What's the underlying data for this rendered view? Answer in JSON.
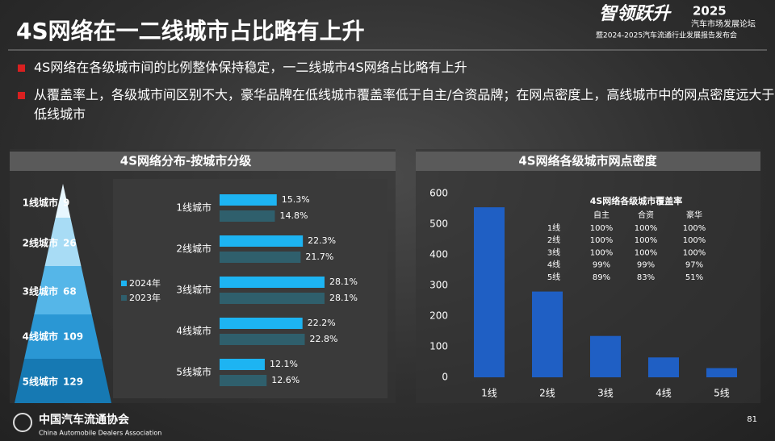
{
  "header": {
    "title": "4S网络在一二线城市占比略有上升",
    "event_title": "智领跃升",
    "event_year": "2025",
    "event_line1": "汽车市场发展论坛",
    "event_line2": "暨2024-2025汽车流通行业发展报告发布会"
  },
  "bullets": [
    "4S网络在各级城市间的比例整体保持稳定，一二线城市4S网络占比略有上升",
    "从覆盖率上，各级城市间区别不大，豪华品牌在低线城市覆盖率低于自主/合资品牌；在网点密度上，高线城市中的网点密度远大于低线城市"
  ],
  "pyramid": {
    "levels": [
      {
        "label": "1线城市",
        "value": 9
      },
      {
        "label": "2线城市",
        "value": 26
      },
      {
        "label": "3线城市",
        "value": 68
      },
      {
        "label": "4线城市",
        "value": 109
      },
      {
        "label": "5线城市",
        "value": 129
      }
    ]
  },
  "chart_data": [
    {
      "type": "bar",
      "orientation": "horizontal",
      "title": "4S网络分布-按城市分级",
      "categories": [
        "1线城市",
        "2线城市",
        "3线城市",
        "4线城市",
        "5线城市"
      ],
      "series": [
        {
          "name": "2024年",
          "color": "#1db4f2",
          "values": [
            15.3,
            22.3,
            28.1,
            22.2,
            12.1
          ],
          "value_labels": [
            "15.3%",
            "22.3%",
            "28.1%",
            "22.2%",
            "12.1%"
          ]
        },
        {
          "name": "2023年",
          "color": "#2f5f6c",
          "values": [
            14.8,
            21.7,
            28.1,
            22.8,
            12.6
          ],
          "value_labels": [
            "14.8%",
            "21.7%",
            "28.1%",
            "22.8%",
            "12.6%"
          ]
        }
      ]
    },
    {
      "type": "bar",
      "orientation": "vertical",
      "title": "4S网络各级城市网点密度",
      "categories": [
        "1线",
        "2线",
        "3线",
        "4线",
        "5线"
      ],
      "values": [
        555,
        280,
        135,
        65,
        30
      ],
      "color": "#1f5fc4",
      "ylim": [
        0,
        600
      ],
      "yticks": [
        0,
        100,
        200,
        300,
        400,
        500,
        600
      ],
      "grid": false
    }
  ],
  "coverage_table": {
    "title": "4S网络各级城市覆盖率",
    "columns": [
      "自主",
      "合资",
      "豪华"
    ],
    "rows": [
      [
        "1线",
        "100%",
        "100%",
        "100%"
      ],
      [
        "2线",
        "100%",
        "100%",
        "100%"
      ],
      [
        "3线",
        "100%",
        "100%",
        "100%"
      ],
      [
        "4线",
        "99%",
        "99%",
        "97%"
      ],
      [
        "5线",
        "89%",
        "83%",
        "51%"
      ]
    ]
  },
  "footer": {
    "org": "中国汽车流通协会",
    "org_en": "China Automobile Dealers Association",
    "page": "81"
  }
}
